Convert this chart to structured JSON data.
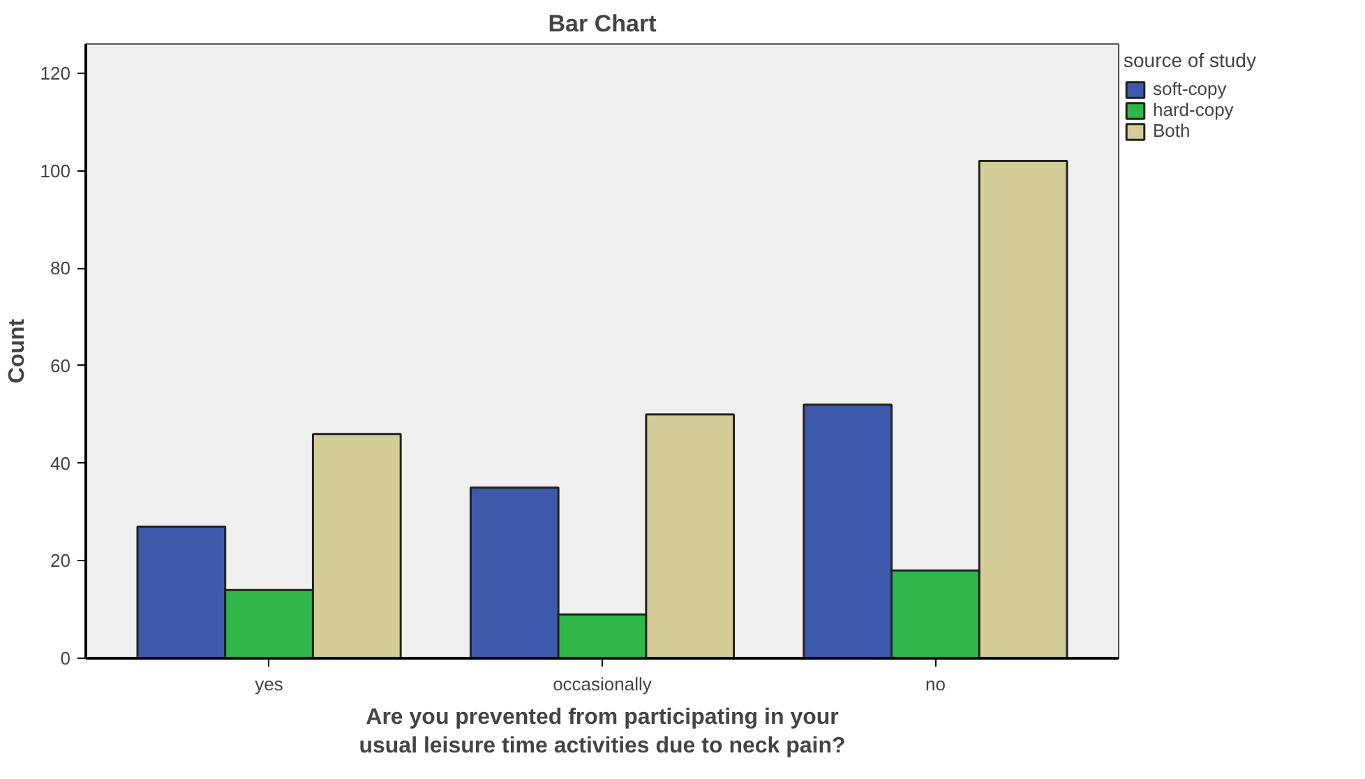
{
  "chart_data": {
    "type": "bar",
    "title": "Bar Chart",
    "xlabel": "Are you prevented from participating in your usual leisure time activities due to neck pain?",
    "ylabel": "Count",
    "legend_title": "source of study",
    "categories": [
      "yes",
      "occasionally",
      "no"
    ],
    "series": [
      {
        "name": "soft-copy",
        "color": "#3d59ab",
        "values": [
          27,
          35,
          52
        ]
      },
      {
        "name": "hard-copy",
        "color": "#2fb74a",
        "values": [
          14,
          9,
          18
        ]
      },
      {
        "name": "Both",
        "color": "#d3ce97",
        "values": [
          46,
          50,
          102
        ]
      }
    ],
    "ylim": [
      0,
      126
    ],
    "yticks": [
      0,
      20,
      40,
      60,
      80,
      100,
      120
    ],
    "grid": false,
    "legend": "right"
  }
}
